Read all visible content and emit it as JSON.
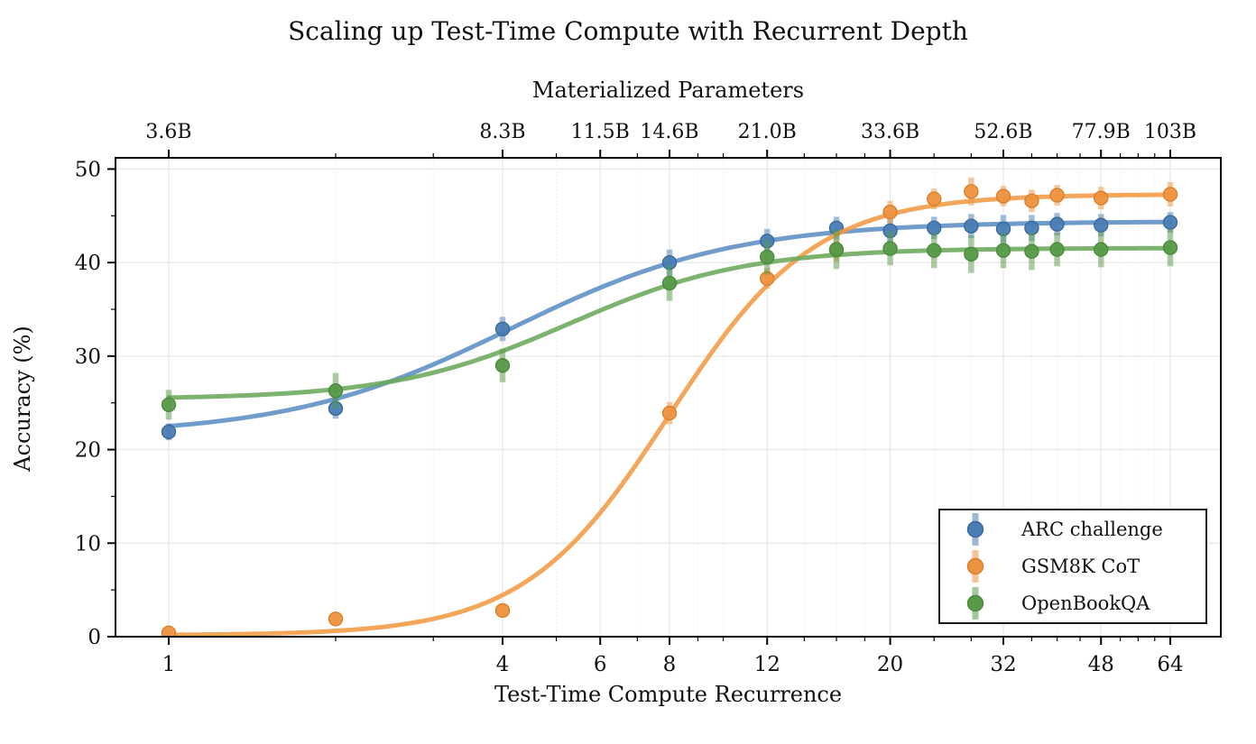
{
  "title": "Scaling up Test-Time Compute with Recurrent Depth",
  "chart_data": {
    "type": "scatter",
    "title": "Scaling up Test-Time Compute with Recurrent Depth",
    "top_axis_label": "Materialized Parameters",
    "xlabel": "Test-Time Compute Recurrence",
    "ylabel": "Accuracy (%)",
    "x_scale": "log",
    "xlim": [
      0.8,
      79
    ],
    "ylim": [
      0,
      51.2
    ],
    "grid": true,
    "legend_position": "lower right",
    "x": [
      1,
      2,
      4,
      8,
      12,
      16,
      20,
      24,
      28,
      32,
      36,
      40,
      48,
      64
    ],
    "series": [
      {
        "name": "ARC challenge",
        "color": "#4a7db3",
        "edge_color": "#3a699c",
        "line_color": "#5b8ec4",
        "values": [
          21.9,
          24.4,
          32.9,
          40.0,
          42.3,
          43.7,
          43.4,
          43.7,
          43.9,
          43.6,
          43.7,
          44.1,
          44.0,
          44.3
        ],
        "errors": [
          0.9,
          1.1,
          1.3,
          1.4,
          1.3,
          1.2,
          1.2,
          1.2,
          1.3,
          1.5,
          1.4,
          1.2,
          1.2,
          1.1
        ],
        "fit_sigmoid": {
          "low": 21.5,
          "high": 44.4,
          "steepness": 1.5,
          "midpoint_log2": 2.05
        }
      },
      {
        "name": "GSM8K CoT",
        "color": "#ed9340",
        "edge_color": "#d87f2a",
        "line_color": "#f29b44",
        "values": [
          0.4,
          1.9,
          2.8,
          23.9,
          38.3,
          41.3,
          45.4,
          46.8,
          47.6,
          47.1,
          46.6,
          47.2,
          46.9,
          47.3
        ],
        "errors": [
          0.3,
          0.5,
          0.7,
          1.2,
          1.1,
          1.2,
          1.2,
          1.1,
          1.5,
          1.1,
          1.2,
          1.1,
          1.2,
          1.3
        ],
        "fit_sigmoid": {
          "low": 0.15,
          "high": 47.3,
          "steepness": 2.3,
          "midpoint_log2": 3.0
        }
      },
      {
        "name": "OpenBookQA",
        "color": "#579a48",
        "edge_color": "#4a8a3e",
        "line_color": "#6aa95a",
        "values": [
          24.8,
          26.3,
          29.0,
          37.8,
          40.6,
          41.4,
          41.5,
          41.3,
          40.9,
          41.3,
          41.2,
          41.4,
          41.4,
          41.6
        ],
        "errors": [
          1.6,
          1.9,
          1.8,
          1.9,
          1.9,
          2.1,
          1.8,
          1.9,
          2.0,
          1.9,
          2.0,
          1.8,
          1.9,
          2.0
        ],
        "fit_sigmoid": {
          "low": 25.4,
          "high": 41.55,
          "steepness": 1.9,
          "midpoint_log2": 2.4
        }
      }
    ],
    "x_ticks": {
      "values": [
        1,
        4,
        6,
        8,
        12,
        20,
        32,
        48,
        64
      ],
      "labels": [
        "1",
        "4",
        "6",
        "8",
        "12",
        "20",
        "32",
        "48",
        "64"
      ]
    },
    "top_ticks": {
      "values": [
        1,
        4,
        6,
        8,
        12,
        20,
        32,
        48,
        64
      ],
      "labels": [
        "3.6B",
        "8.3B",
        "11.5B",
        "14.6B",
        "21.0B",
        "33.6B",
        "52.6B",
        "77.9B",
        "103B"
      ]
    },
    "x_minor_ticks": [
      2,
      3,
      5,
      7,
      9,
      10,
      14,
      16,
      18,
      24,
      28,
      36,
      40,
      44,
      52,
      56,
      60
    ],
    "y_ticks": {
      "values": [
        0,
        10,
        20,
        30,
        40,
        50
      ],
      "labels": [
        "0",
        "10",
        "20",
        "30",
        "40",
        "50"
      ]
    },
    "y_minor_ticks": [
      5,
      15,
      25,
      35,
      45
    ]
  }
}
